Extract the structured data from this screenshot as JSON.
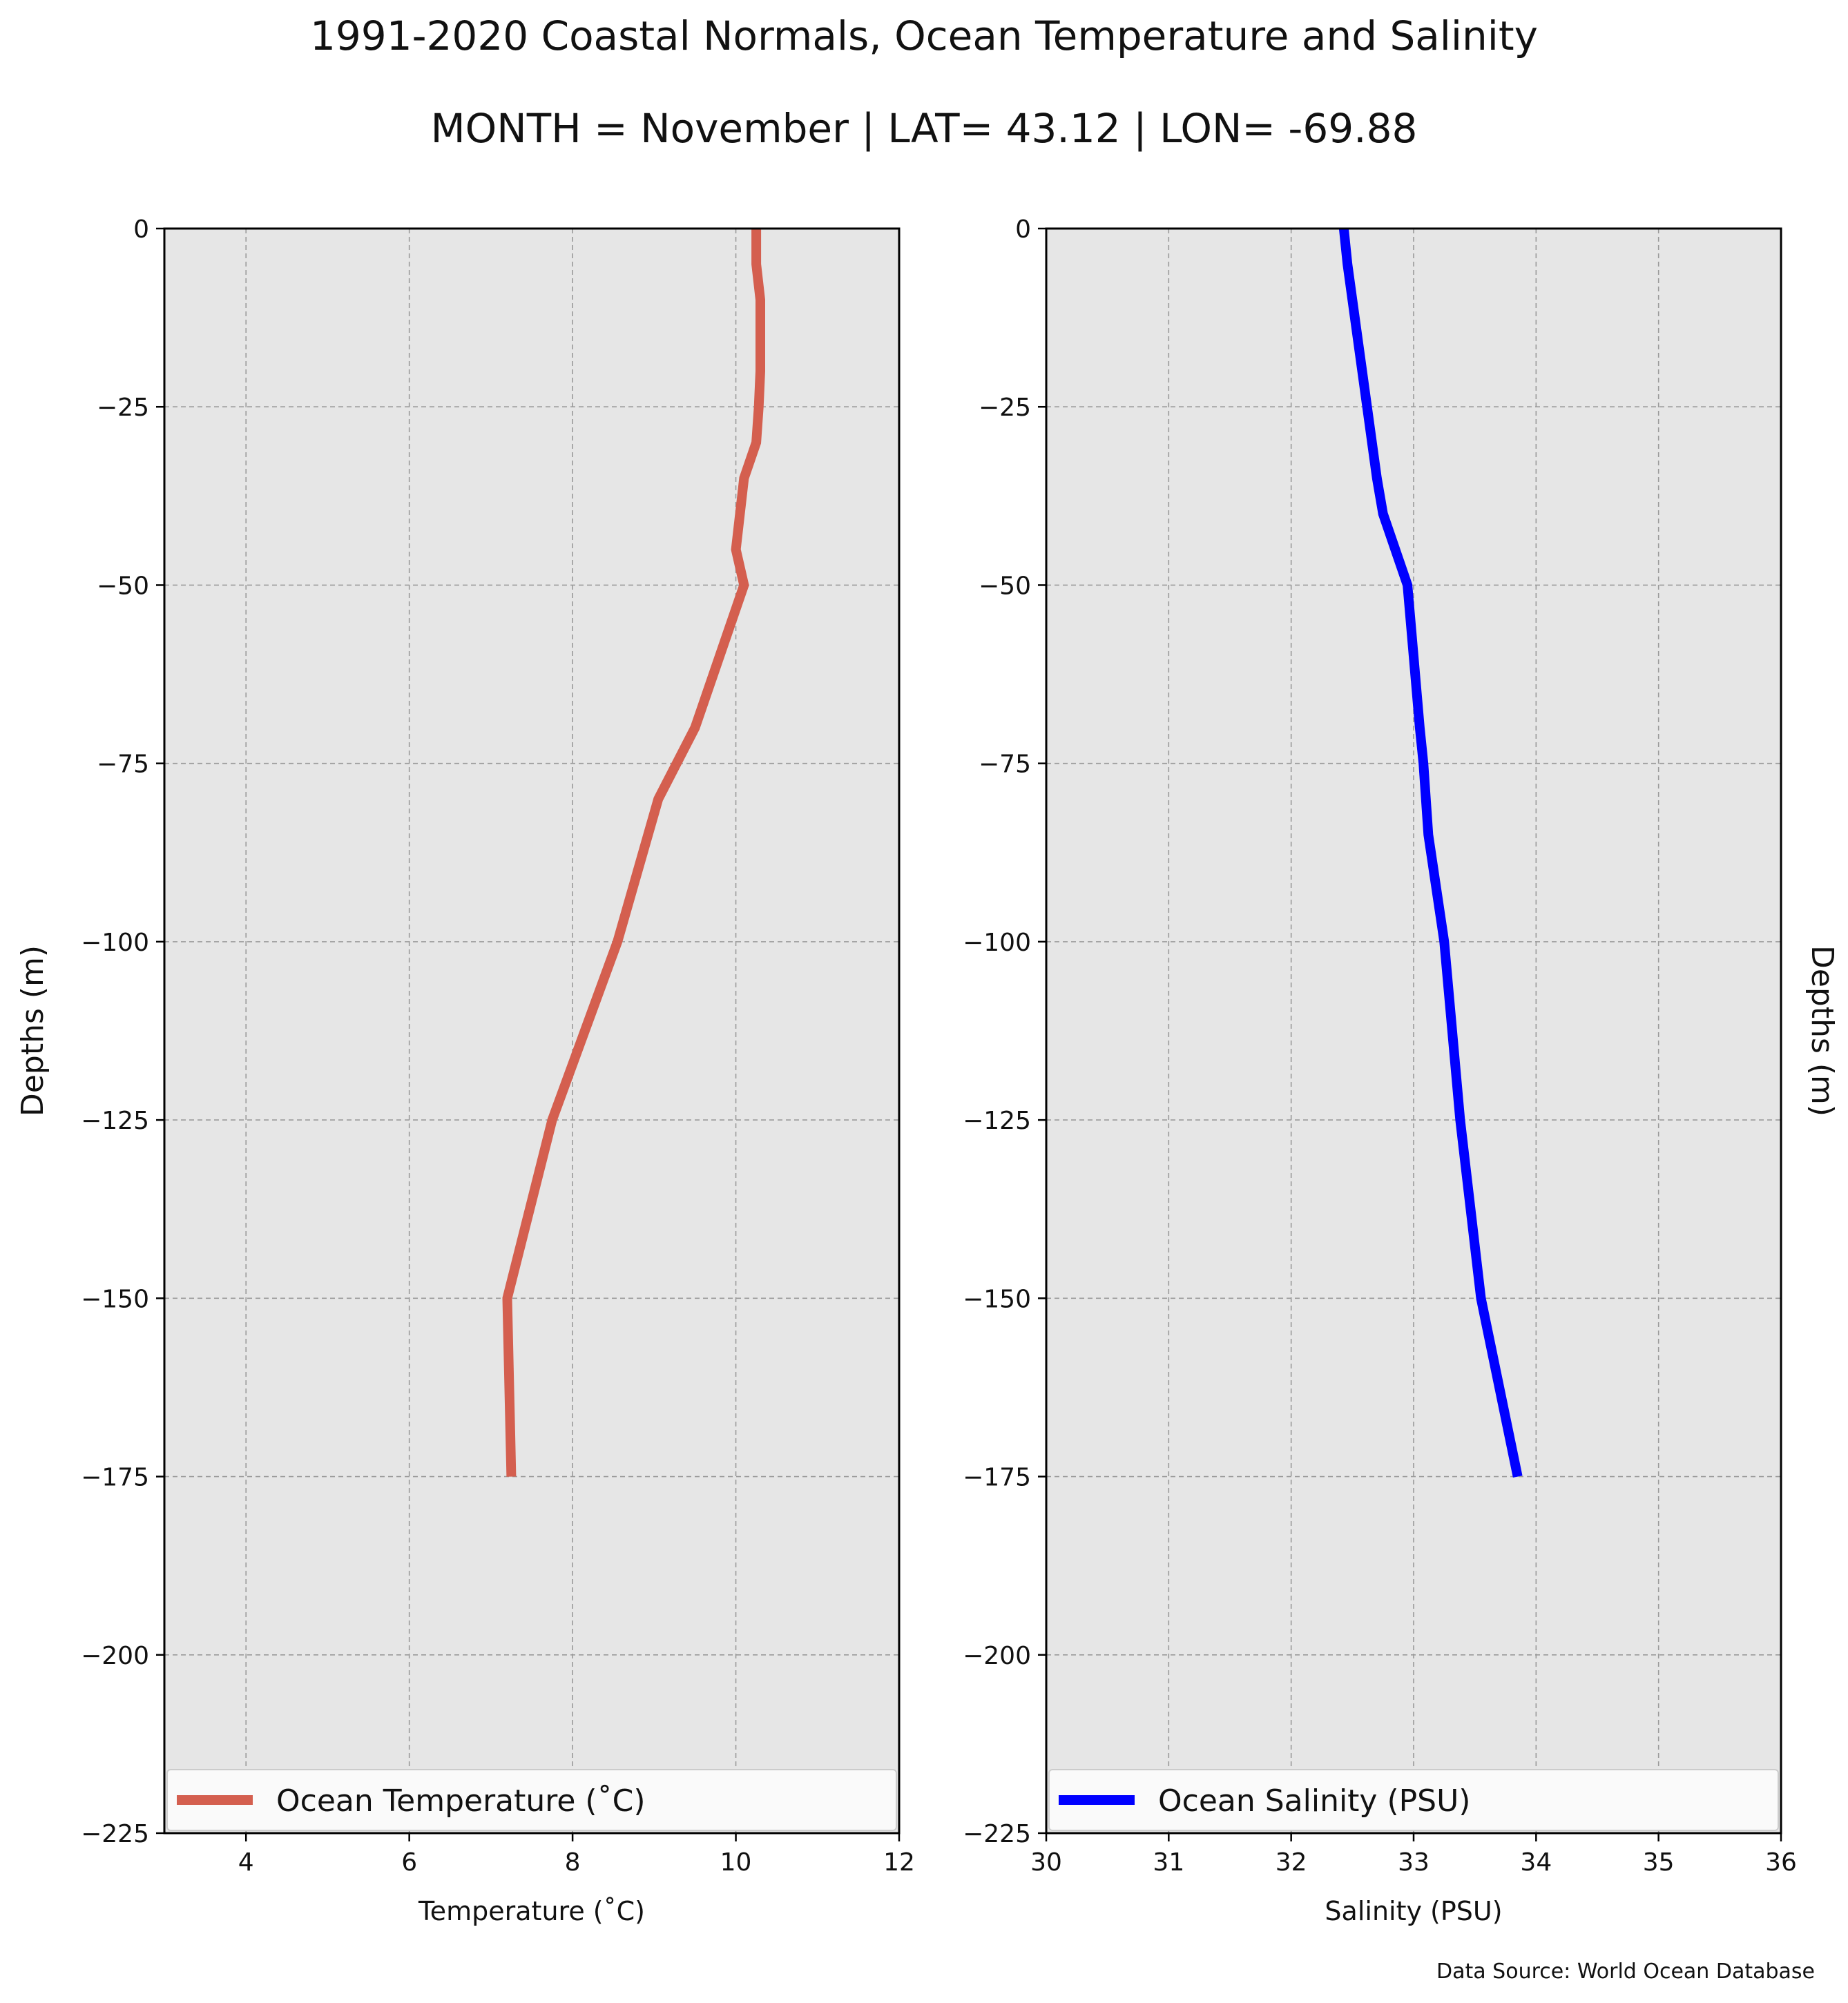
{
  "figure": {
    "title": "1991-2020 Coastal Normals, Ocean Temperature and Salinity",
    "subtitle": "MONTH = November | LAT= 43.12 | LON= -69.88",
    "source": "Data Source: World Ocean Database"
  },
  "colors": {
    "temperature_line": "#d45f4f",
    "salinity_line": "#0000ff",
    "axes_background": "#e6e6e6",
    "grid": "#9a9a9a"
  },
  "chart_data": [
    {
      "type": "line",
      "orientation": "profile",
      "xlabel": "Temperature ($^\\circ$C)",
      "xlabel_display": "Temperature (˚C)",
      "ylabel": "Depths (m)",
      "ylabel_position": "left",
      "xlim": [
        3,
        12
      ],
      "ylim": [
        -225,
        0
      ],
      "xticks": [
        4,
        6,
        8,
        10,
        12
      ],
      "xtick_labels": [
        "4",
        "6",
        "8",
        "10",
        "12"
      ],
      "yticks": [
        0,
        -25,
        -50,
        -75,
        -100,
        -125,
        -150,
        -175,
        -200,
        -225
      ],
      "ytick_labels": [
        "0",
        "−25",
        "−50",
        "−75",
        "−100",
        "−125",
        "−150",
        "−175",
        "−200",
        "−225"
      ],
      "grid": true,
      "legend_position": "bottom",
      "series": [
        {
          "name": "Ocean Temperature (˚C)",
          "color": "#d45f4f",
          "x": [
            10.25,
            10.25,
            10.3,
            10.3,
            10.28,
            10.25,
            10.1,
            10.0,
            10.1,
            9.8,
            9.5,
            9.05,
            8.55,
            7.75,
            7.2,
            7.25
          ],
          "y": [
            0,
            -5,
            -10,
            -20,
            -25,
            -30,
            -35,
            -45,
            -50,
            -60,
            -70,
            -80,
            -100,
            -125,
            -150,
            -175
          ]
        }
      ]
    },
    {
      "type": "line",
      "orientation": "profile",
      "xlabel": "Salinity (PSU)",
      "ylabel": "Depths (m)",
      "ylabel_position": "right",
      "xlim": [
        30,
        36
      ],
      "ylim": [
        -225,
        0
      ],
      "xticks": [
        30,
        31,
        32,
        33,
        34,
        35,
        36
      ],
      "xtick_labels": [
        "30",
        "31",
        "32",
        "33",
        "34",
        "35",
        "36"
      ],
      "yticks": [
        0,
        -25,
        -50,
        -75,
        -100,
        -125,
        -150,
        -175,
        -200,
        -225
      ],
      "ytick_labels": [
        "0",
        "−25",
        "−50",
        "−75",
        "−100",
        "−125",
        "−150",
        "−175",
        "−200",
        "−225"
      ],
      "grid": true,
      "legend_position": "bottom",
      "series": [
        {
          "name": "Ocean Salinity (PSU)",
          "color": "#0000ff",
          "x": [
            32.43,
            32.46,
            32.5,
            32.58,
            32.62,
            32.66,
            32.7,
            32.75,
            32.85,
            32.95,
            33.0,
            33.05,
            33.08,
            33.12,
            33.25,
            33.38,
            33.55,
            33.85
          ],
          "y": [
            0,
            -5,
            -10,
            -20,
            -25,
            -30,
            -35,
            -40,
            -45,
            -50,
            -60,
            -70,
            -75,
            -85,
            -100,
            -125,
            -150,
            -175
          ]
        }
      ]
    }
  ]
}
